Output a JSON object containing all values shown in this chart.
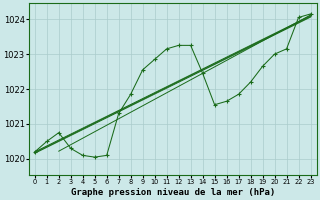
{
  "xlabel": "Graphe pression niveau de la mer (hPa)",
  "background_color": "#cce8e8",
  "grid_color": "#aacccc",
  "line_color": "#1a6b1a",
  "ylim": [
    1019.55,
    1024.45
  ],
  "xlim": [
    -0.5,
    23.5
  ],
  "yticks": [
    1020,
    1021,
    1022,
    1023,
    1024
  ],
  "xticks": [
    0,
    1,
    2,
    3,
    4,
    5,
    6,
    7,
    8,
    9,
    10,
    11,
    12,
    13,
    14,
    15,
    16,
    17,
    18,
    19,
    20,
    21,
    22,
    23
  ],
  "xlabel_fontsize": 6.5,
  "ytick_fontsize": 6.0,
  "xtick_fontsize": 4.8,
  "main_x": [
    0,
    1,
    2,
    3,
    4,
    5,
    6,
    7,
    8,
    9,
    10,
    11,
    12,
    13,
    14,
    15,
    16,
    17,
    18,
    19,
    20,
    21,
    22,
    23
  ],
  "main_y": [
    1020.2,
    1020.5,
    1020.75,
    1020.3,
    1020.1,
    1020.05,
    1020.1,
    1021.3,
    1021.85,
    1022.55,
    1022.85,
    1023.15,
    1023.25,
    1023.25,
    1022.45,
    1021.55,
    1021.65,
    1021.85,
    1022.2,
    1022.65,
    1023.0,
    1023.15,
    1024.05,
    1024.15
  ],
  "straight_lines": [
    {
      "x": [
        0,
        23
      ],
      "y": [
        1020.2,
        1024.1
      ]
    },
    {
      "x": [
        0,
        23
      ],
      "y": [
        1020.15,
        1024.05
      ]
    },
    {
      "x": [
        0,
        23
      ],
      "y": [
        1020.2,
        1024.15
      ]
    },
    {
      "x": [
        3,
        23
      ],
      "y": [
        1020.3,
        1024.1
      ]
    }
  ]
}
